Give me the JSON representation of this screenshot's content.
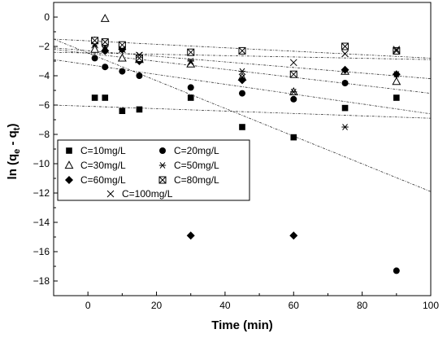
{
  "chart_data": {
    "type": "scatter",
    "xlabel": "Time (min)",
    "ylabel": {
      "main": "ln (q",
      "sub1": "e",
      "mid": " - q",
      "sub2": "t",
      "end": ")"
    },
    "xlim": [
      -10,
      100
    ],
    "ylim": [
      -19,
      1
    ],
    "xticks": [
      0,
      20,
      40,
      60,
      80,
      100
    ],
    "yticks": [
      0,
      -2,
      -4,
      -6,
      -8,
      -10,
      -12,
      -14,
      -16,
      -18
    ],
    "grid": false,
    "legend_position": "lower-left",
    "series": [
      {
        "name": "C=10mg/L",
        "marker": "square",
        "points": [
          [
            2,
            -5.5
          ],
          [
            5,
            -5.5
          ],
          [
            10,
            -6.4
          ],
          [
            15,
            -6.3
          ],
          [
            30,
            -5.5
          ],
          [
            45,
            -7.5
          ],
          [
            60,
            -8.2
          ],
          [
            75,
            -6.2
          ],
          [
            90,
            -5.5
          ]
        ],
        "fit": [
          [
            -10,
            -6.0
          ],
          [
            100,
            -6.9
          ]
        ]
      },
      {
        "name": "C=20mg/L",
        "marker": "circle",
        "points": [
          [
            2,
            -2.8
          ],
          [
            5,
            -3.4
          ],
          [
            10,
            -3.7
          ],
          [
            15,
            -4.0
          ],
          [
            30,
            -4.8
          ],
          [
            45,
            -5.2
          ],
          [
            60,
            -5.6
          ],
          [
            75,
            -4.5
          ],
          [
            90,
            -17.3
          ]
        ],
        "fit": [
          [
            -10,
            -2.9
          ],
          [
            100,
            -6.6
          ]
        ]
      },
      {
        "name": "C=30mg/L",
        "marker": "triangle",
        "points": [
          [
            2,
            -2.2
          ],
          [
            5,
            -0.1
          ],
          [
            10,
            -2.8
          ],
          [
            15,
            -2.9
          ],
          [
            30,
            -3.2
          ],
          [
            45,
            -4.1
          ],
          [
            60,
            -5.1
          ],
          [
            75,
            -3.7
          ],
          [
            90,
            -4.4
          ]
        ],
        "fit": [
          [
            -10,
            -2.2
          ],
          [
            100,
            -5.2
          ]
        ]
      },
      {
        "name": "C=50mg/L",
        "marker": "star",
        "points": [
          [
            2,
            -1.8
          ],
          [
            5,
            -2.0
          ],
          [
            10,
            -2.2
          ],
          [
            15,
            -2.6
          ],
          [
            30,
            -3.0
          ],
          [
            45,
            -3.7
          ],
          [
            60,
            -5.1
          ],
          [
            75,
            -7.5
          ],
          [
            90,
            -3.9
          ]
        ],
        "fit": [
          [
            -10,
            -1.5
          ],
          [
            100,
            -11.9
          ]
        ]
      },
      {
        "name": "C=60mg/L",
        "marker": "diamond",
        "points": [
          [
            2,
            -1.6
          ],
          [
            5,
            -2.3
          ],
          [
            10,
            -2.2
          ],
          [
            15,
            -3.0
          ],
          [
            30,
            -14.9
          ],
          [
            45,
            -4.3
          ],
          [
            60,
            -14.9
          ],
          [
            75,
            -3.6
          ],
          [
            90,
            -3.9
          ]
        ],
        "fit": [
          [
            -10,
            -2.1
          ],
          [
            100,
            -4.2
          ]
        ]
      },
      {
        "name": "C=80mg/L",
        "marker": "boxed-x",
        "points": [
          [
            2,
            -1.6
          ],
          [
            5,
            -1.7
          ],
          [
            10,
            -1.9
          ],
          [
            15,
            -2.8
          ],
          [
            30,
            -2.4
          ],
          [
            45,
            -2.3
          ],
          [
            60,
            -3.9
          ],
          [
            75,
            -2.0
          ],
          [
            90,
            -2.3
          ]
        ],
        "fit": [
          [
            -10,
            -1.5
          ],
          [
            100,
            -2.8
          ]
        ]
      },
      {
        "name": "C=100mg/L",
        "marker": "x",
        "points": [
          [
            2,
            -1.9
          ],
          [
            5,
            -2.2
          ],
          [
            10,
            -2.2
          ],
          [
            15,
            -2.6
          ],
          [
            30,
            -3.1
          ],
          [
            45,
            -4.1
          ],
          [
            60,
            -3.1
          ],
          [
            75,
            -2.5
          ],
          [
            90,
            -2.2
          ]
        ],
        "fit": [
          [
            -10,
            -2.4
          ],
          [
            100,
            -2.9
          ]
        ]
      }
    ]
  }
}
